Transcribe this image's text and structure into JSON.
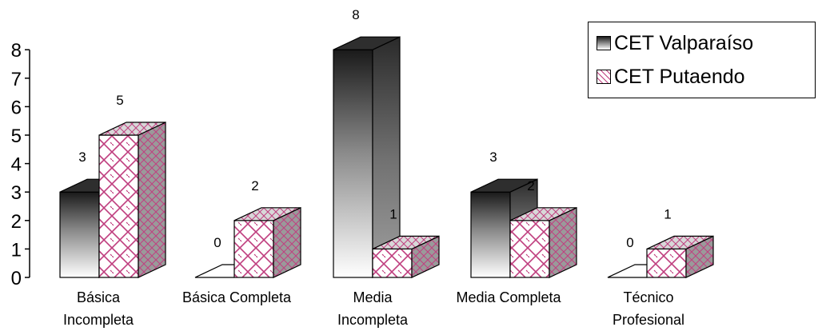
{
  "chart_data": {
    "type": "bar",
    "categories": [
      [
        "Básica",
        "Incompleta"
      ],
      [
        "Básica Completa"
      ],
      [
        "Media",
        "Incompleta"
      ],
      [
        "Media Completa"
      ],
      [
        "Técnico",
        "Profesional"
      ]
    ],
    "series": [
      {
        "name": "CET Valparaíso",
        "values": [
          3,
          0,
          8,
          3,
          0
        ],
        "color": "#3a3a3a",
        "pattern": "gradient-dark"
      },
      {
        "name": "CET Putaendo",
        "values": [
          5,
          2,
          1,
          2,
          1
        ],
        "color": "#b03070",
        "pattern": "brick-pink"
      }
    ],
    "ylim": [
      0,
      8
    ],
    "yticks": [
      "0",
      "1",
      "2",
      "3",
      "4",
      "5",
      "6",
      "7",
      "8"
    ],
    "title": "",
    "xlabel": "",
    "ylabel": "",
    "legend_position": "top-right",
    "style": "3d"
  }
}
